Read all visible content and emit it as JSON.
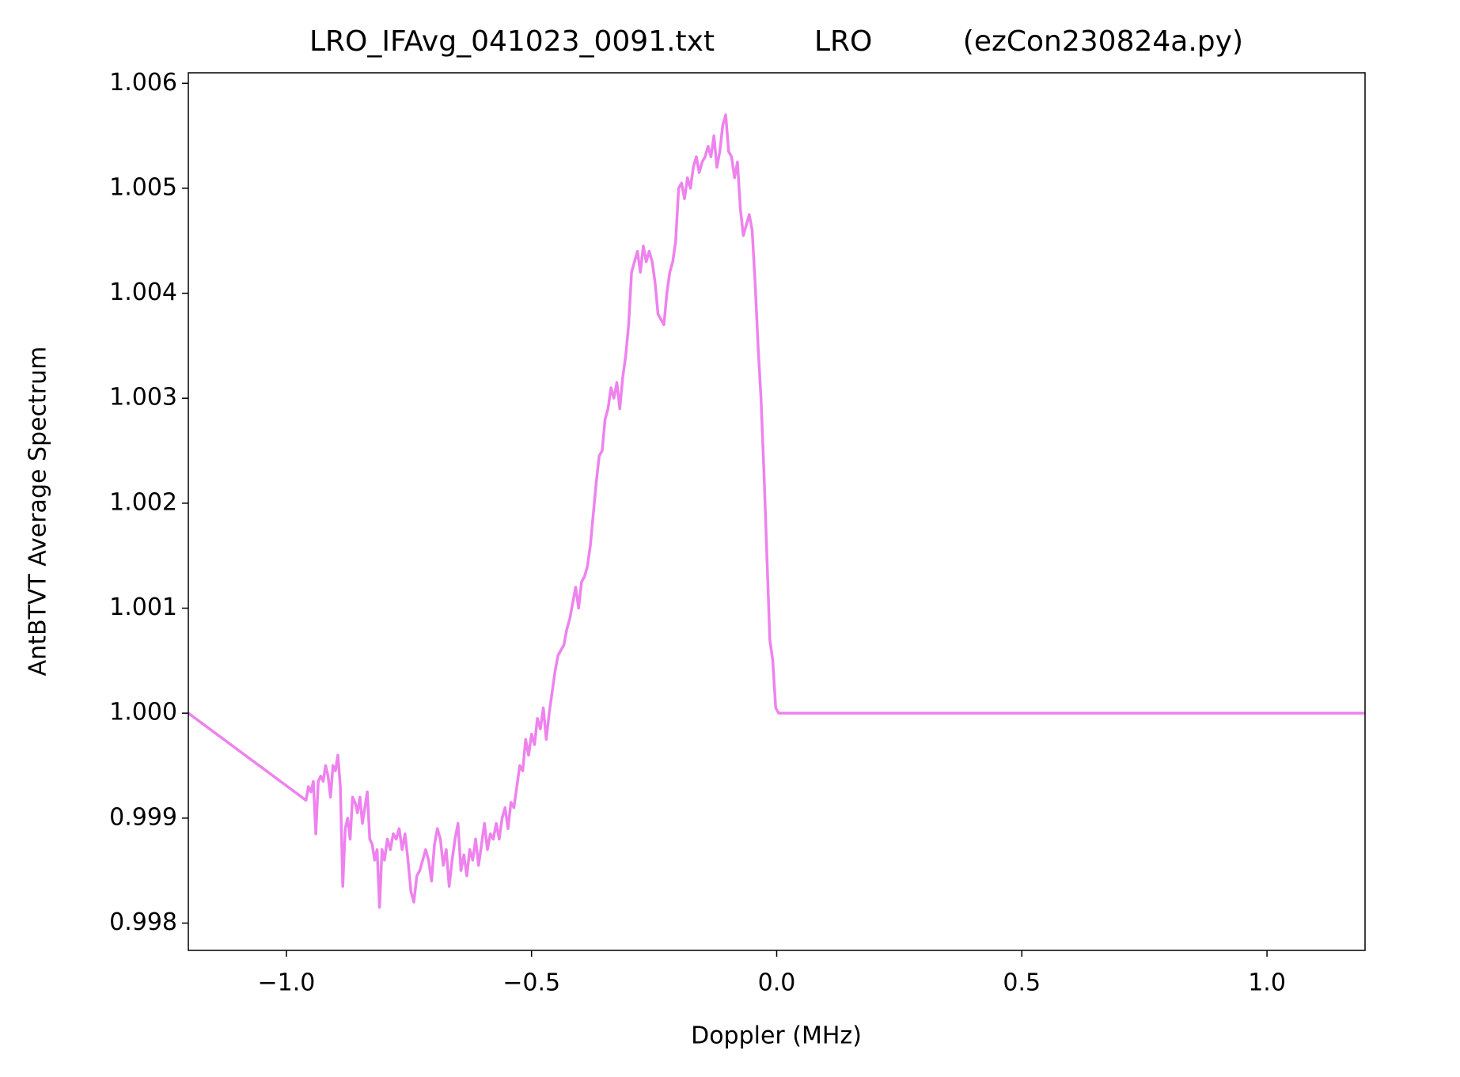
{
  "chart_data": {
    "type": "line",
    "title": "LRO_IFAvg_041023_0091.txt           LRO          (ezCon230824a.py)",
    "x_label": "Doppler (MHz)",
    "y_label": "AntBTVT Average Spectrum",
    "x": [
      -1.2,
      -0.96,
      -0.955,
      -0.95,
      -0.945,
      -0.94,
      -0.935,
      -0.93,
      -0.925,
      -0.92,
      -0.915,
      -0.91,
      -0.905,
      -0.9,
      -0.895,
      -0.89,
      -0.885,
      -0.88,
      -0.875,
      -0.87,
      -0.865,
      -0.86,
      -0.855,
      -0.85,
      -0.845,
      -0.84,
      -0.835,
      -0.83,
      -0.825,
      -0.82,
      -0.815,
      -0.81,
      -0.805,
      -0.8,
      -0.794,
      -0.788,
      -0.782,
      -0.776,
      -0.77,
      -0.764,
      -0.758,
      -0.752,
      -0.746,
      -0.74,
      -0.734,
      -0.728,
      -0.722,
      -0.716,
      -0.71,
      -0.704,
      -0.698,
      -0.692,
      -0.686,
      -0.68,
      -0.674,
      -0.668,
      -0.662,
      -0.656,
      -0.65,
      -0.644,
      -0.638,
      -0.632,
      -0.626,
      -0.62,
      -0.614,
      -0.608,
      -0.602,
      -0.596,
      -0.59,
      -0.584,
      -0.578,
      -0.572,
      -0.566,
      -0.56,
      -0.554,
      -0.548,
      -0.542,
      -0.536,
      -0.53,
      -0.524,
      -0.518,
      -0.512,
      -0.506,
      -0.5,
      -0.494,
      -0.488,
      -0.482,
      -0.476,
      -0.47,
      -0.464,
      -0.458,
      -0.452,
      -0.446,
      -0.44,
      -0.434,
      -0.428,
      -0.422,
      -0.416,
      -0.41,
      -0.404,
      -0.398,
      -0.392,
      -0.386,
      -0.38,
      -0.374,
      -0.368,
      -0.362,
      -0.356,
      -0.35,
      -0.344,
      -0.338,
      -0.332,
      -0.326,
      -0.32,
      -0.314,
      -0.308,
      -0.302,
      -0.296,
      -0.29,
      -0.284,
      -0.278,
      -0.272,
      -0.266,
      -0.26,
      -0.254,
      -0.248,
      -0.242,
      -0.236,
      -0.23,
      -0.224,
      -0.218,
      -0.212,
      -0.206,
      -0.2,
      -0.194,
      -0.188,
      -0.182,
      -0.176,
      -0.17,
      -0.164,
      -0.158,
      -0.152,
      -0.146,
      -0.14,
      -0.134,
      -0.128,
      -0.122,
      -0.116,
      -0.11,
      -0.104,
      -0.098,
      -0.092,
      -0.086,
      -0.08,
      -0.074,
      -0.068,
      -0.062,
      -0.056,
      -0.05,
      -0.044,
      -0.038,
      -0.032,
      -0.026,
      -0.02,
      -0.014,
      -0.008,
      -0.002,
      0.004,
      1.2
    ],
    "series": [
      {
        "color": "#ee82ee",
        "values": [
          1.0,
          0.99917,
          0.9993,
          0.99925,
          0.99935,
          0.99885,
          0.99935,
          0.9994,
          0.99935,
          0.9995,
          0.9994,
          0.9992,
          0.9995,
          0.99945,
          0.9996,
          0.9993,
          0.99835,
          0.9989,
          0.999,
          0.9988,
          0.9992,
          0.99915,
          0.99905,
          0.9992,
          0.99895,
          0.9991,
          0.99925,
          0.9988,
          0.99875,
          0.9986,
          0.9987,
          0.99815,
          0.9987,
          0.9986,
          0.9988,
          0.9987,
          0.99885,
          0.9988,
          0.9989,
          0.9987,
          0.99885,
          0.9986,
          0.9983,
          0.9982,
          0.99845,
          0.9985,
          0.9986,
          0.9987,
          0.9986,
          0.9984,
          0.99875,
          0.9989,
          0.9988,
          0.99855,
          0.9987,
          0.99835,
          0.9986,
          0.9988,
          0.99895,
          0.9985,
          0.99865,
          0.99845,
          0.9987,
          0.9986,
          0.9988,
          0.99855,
          0.99875,
          0.99895,
          0.9987,
          0.99885,
          0.9988,
          0.99895,
          0.9988,
          0.999,
          0.9991,
          0.9989,
          0.99915,
          0.9991,
          0.9993,
          0.9995,
          0.99945,
          0.99975,
          0.9996,
          0.9998,
          0.9997,
          0.99995,
          0.99985,
          1.00005,
          0.99975,
          1.0,
          1.0002,
          1.0004,
          1.00055,
          1.0006,
          1.00065,
          1.0008,
          1.0009,
          1.00105,
          1.0012,
          1.001,
          1.00125,
          1.0013,
          1.0014,
          1.0016,
          1.0019,
          1.0022,
          1.00245,
          1.0025,
          1.0028,
          1.0029,
          1.0031,
          1.003,
          1.00315,
          1.0029,
          1.0032,
          1.0034,
          1.0037,
          1.0042,
          1.0043,
          1.0044,
          1.0042,
          1.00445,
          1.0043,
          1.0044,
          1.0043,
          1.0041,
          1.0038,
          1.00375,
          1.0037,
          1.004,
          1.0042,
          1.0043,
          1.0045,
          1.005,
          1.00505,
          1.0049,
          1.0051,
          1.005,
          1.0052,
          1.0053,
          1.00515,
          1.00525,
          1.0053,
          1.0054,
          1.0053,
          1.0055,
          1.0052,
          1.00535,
          1.0056,
          1.0057,
          1.00535,
          1.0053,
          1.0051,
          1.00525,
          1.0048,
          1.00455,
          1.00465,
          1.00475,
          1.0046,
          1.0041,
          1.0035,
          1.003,
          1.0023,
          1.0015,
          1.0007,
          1.0005,
          1.00005,
          1.0,
          1.0
        ]
      }
    ],
    "xlim": [
      -1.2,
      1.2
    ],
    "xticks": [
      {
        "value": -1.0,
        "label": "−1.0"
      },
      {
        "value": -0.5,
        "label": "−0.5"
      },
      {
        "value": 0.0,
        "label": "0.0"
      },
      {
        "value": 0.5,
        "label": "0.5"
      },
      {
        "value": 1.0,
        "label": "1.0"
      }
    ],
    "ylim": [
      0.99774,
      1.0061
    ],
    "yticks": [
      0.998,
      0.999,
      {
        "value": 1.0,
        "label": "1.000"
      },
      1.001,
      1.002,
      1.003,
      1.004,
      1.005,
      1.006
    ],
    "grid": false
  }
}
